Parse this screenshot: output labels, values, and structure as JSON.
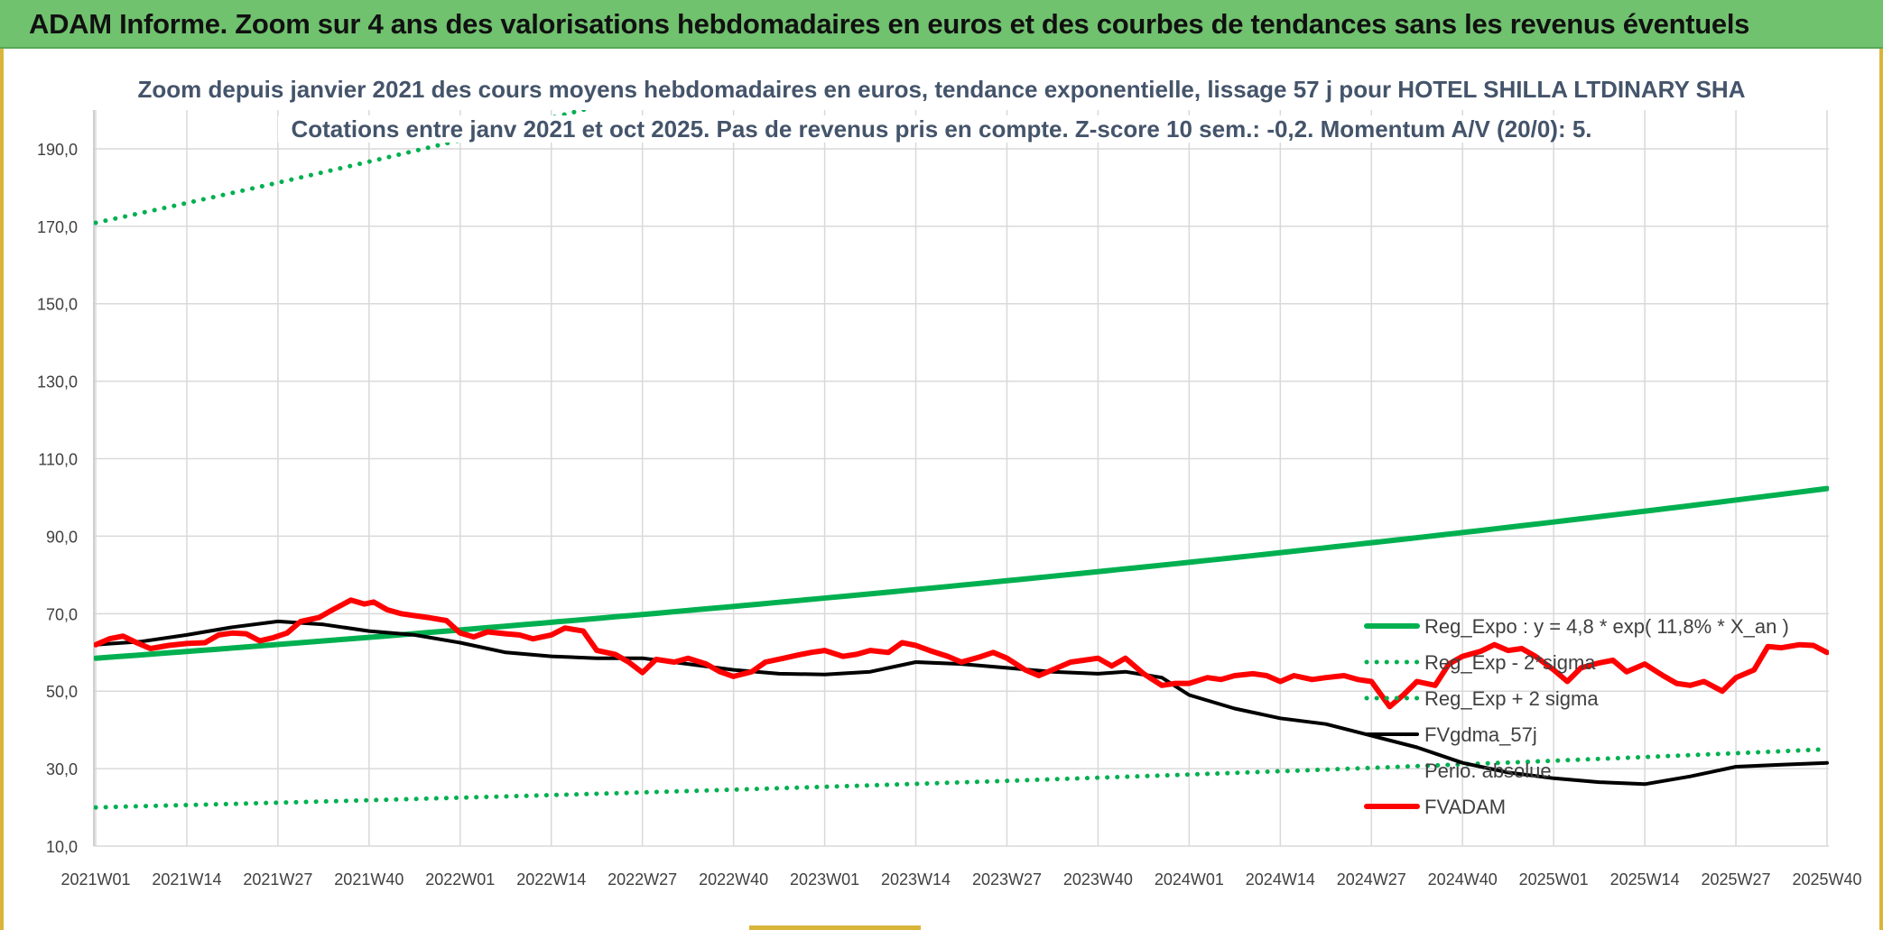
{
  "banner": {
    "title": "ADAM Informe. Zoom sur 4 ans des valorisations hebdomadaires en euros et des courbes de tendances sans les revenus éventuels"
  },
  "colors": {
    "banner_bg": "#70c26e",
    "reg_expo": "#00b050",
    "fvgdma": "#000000",
    "fvadam": "#ff0000",
    "grid": "#d9d9d9"
  },
  "chart_data": {
    "type": "line",
    "title": "Zoom depuis janvier 2021 des cours moyens hebdomadaires en euros, tendance exponentielle, lissage 57 j pour HOTEL SHILLA LTDINARY SHA",
    "subtitle": "Cotations entre janv 2021 et oct 2025. Pas de revenus pris en compte. Z-score 10 sem.: -0,2. Momentum A/V (20/0): 5.",
    "xlabel": "",
    "ylabel": "",
    "ylim": [
      10,
      200
    ],
    "yticks": [
      "10,0",
      "30,0",
      "50,0",
      "70,0",
      "90,0",
      "110,0",
      "130,0",
      "150,0",
      "170,0",
      "190,0"
    ],
    "ytick_values": [
      10,
      30,
      50,
      70,
      90,
      110,
      130,
      150,
      170,
      190
    ],
    "xticks": [
      "2021W01",
      "2021W14",
      "2021W27",
      "2021W40",
      "2022W01",
      "2022W14",
      "2022W27",
      "2022W40",
      "2023W01",
      "2023W14",
      "2023W27",
      "2023W40",
      "2024W01",
      "2024W14",
      "2024W27",
      "2024W40",
      "2025W01",
      "2025W14",
      "2025W27",
      "2025W40"
    ],
    "grid": true,
    "legend_position": "bottom-right",
    "series": [
      {
        "name": "Reg_Expo : y = 4,8 * exp( 11,8% *  X_an )",
        "style": "solid-thick",
        "color": "#00b050",
        "points": [
          [
            0,
            58.5
          ],
          [
            19,
            102.3
          ]
        ]
      },
      {
        "name": "Reg_Exp - 2*sigma",
        "style": "dotted",
        "color": "#00b050",
        "points": [
          [
            0,
            20.0
          ],
          [
            19,
            35.0
          ]
        ]
      },
      {
        "name": "Reg_Exp + 2 sigma",
        "style": "dotted",
        "color": "#00b050",
        "points": [
          [
            0,
            170.9
          ],
          [
            19,
            299.0
          ]
        ]
      },
      {
        "name": "FVgdma_57j",
        "style": "solid",
        "color": "#000000",
        "points": [
          [
            0,
            62
          ],
          [
            0.5,
            62.8
          ],
          [
            1,
            64.5
          ],
          [
            1.5,
            66.5
          ],
          [
            2,
            68
          ],
          [
            2.5,
            67.2
          ],
          [
            3,
            65.5
          ],
          [
            3.5,
            64.5
          ],
          [
            4,
            62.5
          ],
          [
            4.5,
            60
          ],
          [
            5,
            59
          ],
          [
            5.5,
            58.5
          ],
          [
            6,
            58.5
          ],
          [
            6.5,
            57
          ],
          [
            7,
            55.5
          ],
          [
            7.5,
            54.5
          ],
          [
            8,
            54.3
          ],
          [
            8.5,
            55
          ],
          [
            9,
            57.5
          ],
          [
            9.5,
            57
          ],
          [
            10,
            56
          ],
          [
            10.5,
            55
          ],
          [
            11,
            54.5
          ],
          [
            11.3,
            55
          ],
          [
            11.7,
            53.5
          ],
          [
            12,
            49
          ],
          [
            12.5,
            45.5
          ],
          [
            13,
            43
          ],
          [
            13.5,
            41.5
          ],
          [
            14,
            38.5
          ],
          [
            14.5,
            35.5
          ],
          [
            15,
            31.5
          ],
          [
            15.5,
            29
          ],
          [
            16,
            27.5
          ],
          [
            16.5,
            26.5
          ],
          [
            17,
            26
          ],
          [
            17.5,
            28
          ],
          [
            18,
            30.5
          ],
          [
            18.5,
            31
          ],
          [
            19,
            31.5
          ]
        ]
      },
      {
        "name": "Perio. absolue",
        "style": "hidden",
        "color": "#c00000",
        "points": []
      },
      {
        "name": "FVADAM",
        "style": "solid-thick",
        "color": "#ff0000",
        "points": [
          [
            0,
            62
          ],
          [
            0.15,
            63.5
          ],
          [
            0.3,
            64.2
          ],
          [
            0.45,
            62.5
          ],
          [
            0.6,
            61
          ],
          [
            0.8,
            61.8
          ],
          [
            1,
            62.3
          ],
          [
            1.2,
            62.5
          ],
          [
            1.35,
            64.5
          ],
          [
            1.5,
            65
          ],
          [
            1.65,
            64.8
          ],
          [
            1.8,
            63
          ],
          [
            1.95,
            63.8
          ],
          [
            2.1,
            65
          ],
          [
            2.25,
            68
          ],
          [
            2.45,
            69
          ],
          [
            2.6,
            71
          ],
          [
            2.8,
            73.5
          ],
          [
            2.95,
            72.5
          ],
          [
            3.05,
            73
          ],
          [
            3.2,
            71
          ],
          [
            3.35,
            70
          ],
          [
            3.5,
            69.5
          ],
          [
            3.65,
            69
          ],
          [
            3.85,
            68.2
          ],
          [
            4,
            65
          ],
          [
            4.15,
            64
          ],
          [
            4.3,
            65.3
          ],
          [
            4.5,
            64.8
          ],
          [
            4.65,
            64.5
          ],
          [
            4.8,
            63.5
          ],
          [
            5,
            64.5
          ],
          [
            5.15,
            66.3
          ],
          [
            5.35,
            65.5
          ],
          [
            5.5,
            60.5
          ],
          [
            5.7,
            59.5
          ],
          [
            5.85,
            57.5
          ],
          [
            6,
            54.8
          ],
          [
            6.15,
            58.2
          ],
          [
            6.35,
            57.5
          ],
          [
            6.5,
            58.5
          ],
          [
            6.7,
            57
          ],
          [
            6.85,
            55
          ],
          [
            7,
            53.8
          ],
          [
            7.2,
            55
          ],
          [
            7.35,
            57.5
          ],
          [
            7.55,
            58.5
          ],
          [
            7.7,
            59.3
          ],
          [
            7.85,
            60
          ],
          [
            8,
            60.5
          ],
          [
            8.2,
            59
          ],
          [
            8.35,
            59.5
          ],
          [
            8.5,
            60.5
          ],
          [
            8.7,
            60
          ],
          [
            8.85,
            62.5
          ],
          [
            9,
            61.8
          ],
          [
            9.15,
            60.5
          ],
          [
            9.35,
            59
          ],
          [
            9.5,
            57.5
          ],
          [
            9.7,
            58.8
          ],
          [
            9.85,
            60
          ],
          [
            10,
            58.5
          ],
          [
            10.2,
            55.5
          ],
          [
            10.35,
            54
          ],
          [
            10.5,
            55.5
          ],
          [
            10.7,
            57.5
          ],
          [
            10.85,
            58
          ],
          [
            11,
            58.5
          ],
          [
            11.15,
            56.5
          ],
          [
            11.3,
            58.5
          ],
          [
            11.5,
            54.5
          ],
          [
            11.7,
            51.5
          ],
          [
            11.85,
            52
          ],
          [
            12,
            52
          ],
          [
            12.2,
            53.5
          ],
          [
            12.35,
            53
          ],
          [
            12.5,
            54
          ],
          [
            12.7,
            54.5
          ],
          [
            12.85,
            54
          ],
          [
            13,
            52.5
          ],
          [
            13.15,
            54
          ],
          [
            13.35,
            53
          ],
          [
            13.5,
            53.5
          ],
          [
            13.7,
            54
          ],
          [
            13.85,
            53
          ],
          [
            14,
            52.5
          ],
          [
            14.2,
            46
          ],
          [
            14.35,
            49
          ],
          [
            14.5,
            52.5
          ],
          [
            14.7,
            51.5
          ],
          [
            14.85,
            57
          ],
          [
            15,
            59
          ],
          [
            15.2,
            60.3
          ],
          [
            15.35,
            62
          ],
          [
            15.5,
            60.5
          ],
          [
            15.65,
            61
          ],
          [
            15.8,
            59
          ],
          [
            16,
            55.5
          ],
          [
            16.15,
            52.5
          ],
          [
            16.3,
            56
          ],
          [
            16.5,
            57.3
          ],
          [
            16.65,
            58
          ],
          [
            16.8,
            55
          ],
          [
            17,
            57
          ],
          [
            17.2,
            54
          ],
          [
            17.35,
            52
          ],
          [
            17.5,
            51.5
          ],
          [
            17.65,
            52.5
          ],
          [
            17.85,
            50
          ],
          [
            18,
            53.5
          ],
          [
            18.2,
            55.5
          ],
          [
            18.35,
            61.5
          ],
          [
            18.5,
            61.2
          ],
          [
            18.7,
            62
          ],
          [
            18.85,
            61.8
          ],
          [
            19,
            60
          ]
        ]
      }
    ]
  }
}
